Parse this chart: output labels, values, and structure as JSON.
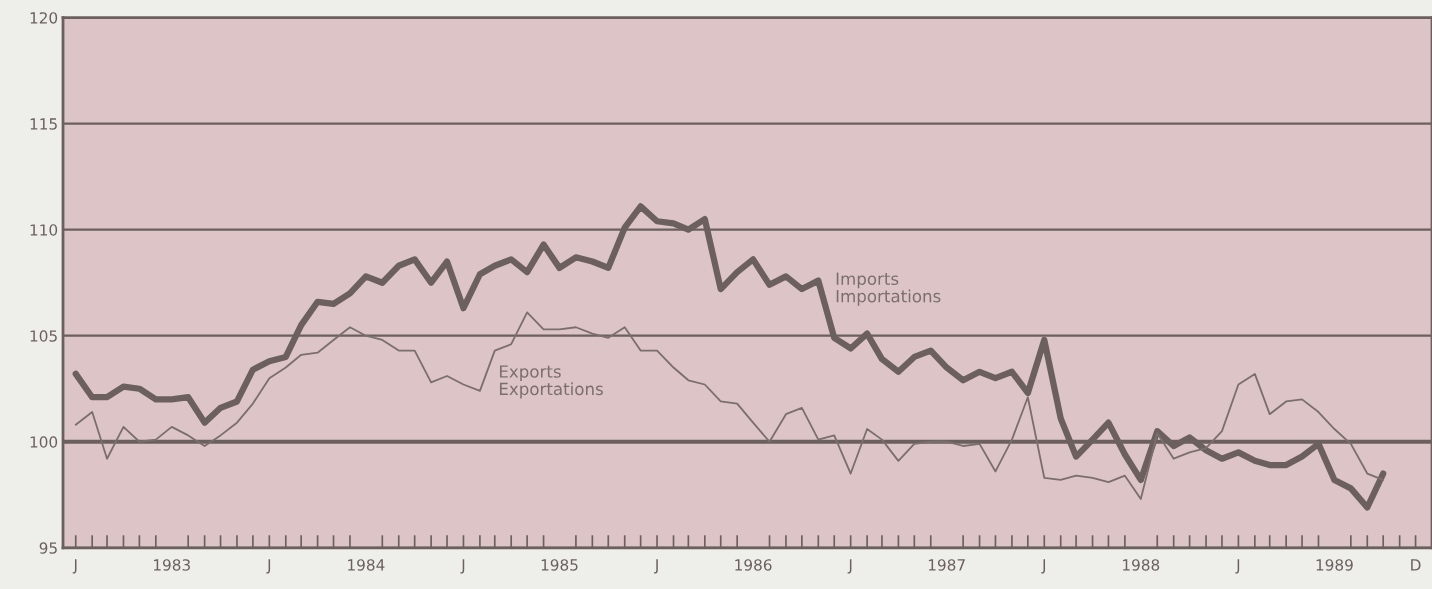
{
  "chart_data": {
    "type": "line",
    "x": [
      "1983-01",
      "1983-02",
      "1983-03",
      "1983-04",
      "1983-05",
      "1983-06",
      "1983-07",
      "1983-08",
      "1983-09",
      "1983-10",
      "1983-11",
      "1983-12",
      "1984-01",
      "1984-02",
      "1984-03",
      "1984-04",
      "1984-05",
      "1984-06",
      "1984-07",
      "1984-08",
      "1984-09",
      "1984-10",
      "1984-11",
      "1984-12",
      "1985-01",
      "1985-02",
      "1985-03",
      "1985-04",
      "1985-05",
      "1985-06",
      "1985-07",
      "1985-08",
      "1985-09",
      "1985-10",
      "1985-11",
      "1985-12",
      "1986-01",
      "1986-02",
      "1986-03",
      "1986-04",
      "1986-05",
      "1986-06",
      "1986-07",
      "1986-08",
      "1986-09",
      "1986-10",
      "1986-11",
      "1986-12",
      "1987-01",
      "1987-02",
      "1987-03",
      "1987-04",
      "1987-05",
      "1987-06",
      "1987-07",
      "1987-08",
      "1987-09",
      "1987-10",
      "1987-11",
      "1987-12",
      "1988-01",
      "1988-02",
      "1988-03",
      "1988-04",
      "1988-05",
      "1988-06",
      "1988-07",
      "1988-08",
      "1988-09",
      "1988-10",
      "1988-11",
      "1988-12",
      "1989-01",
      "1989-02",
      "1989-03",
      "1989-04",
      "1989-05",
      "1989-06",
      "1989-07",
      "1989-08",
      "1989-09",
      "1989-10"
    ],
    "series": [
      {
        "color": "#6b605e",
        "values": [
          103.2,
          102.1,
          102.1,
          102.6,
          102.5,
          102.0,
          102.0,
          102.1,
          100.9,
          101.6,
          101.9,
          103.4,
          103.8,
          104.0,
          105.5,
          106.6,
          106.5,
          107.0,
          107.8,
          107.5,
          108.3,
          108.6,
          107.5,
          108.5,
          106.3,
          107.9,
          108.3,
          108.6,
          108.0,
          109.3,
          108.2,
          108.7,
          108.5,
          108.2,
          110.1,
          111.1,
          110.4,
          110.3,
          110.0,
          110.5,
          107.2,
          108.0,
          108.6,
          107.4,
          107.8,
          107.2,
          107.6,
          104.9,
          104.4,
          105.1,
          103.9,
          103.3,
          104.0,
          104.3,
          103.5,
          102.9,
          103.3,
          103.0,
          103.3,
          102.3,
          104.8,
          101.1,
          99.3,
          100.1,
          100.9,
          99.4,
          98.2,
          100.5,
          99.8,
          100.2,
          99.6,
          99.2,
          99.5,
          99.1,
          98.9,
          98.9,
          99.3,
          99.9,
          98.2,
          97.8,
          96.9,
          98.5
        ]
      },
      {
        "color": "#7a6f6c",
        "values": [
          100.8,
          101.4,
          99.2,
          100.7,
          100.0,
          100.1,
          100.7,
          100.3,
          99.8,
          100.3,
          100.9,
          101.8,
          103.0,
          103.5,
          104.1,
          104.2,
          104.8,
          105.4,
          105.0,
          104.8,
          104.3,
          104.3,
          102.8,
          103.1,
          102.7,
          102.4,
          104.3,
          104.6,
          106.1,
          105.3,
          105.3,
          105.4,
          105.1,
          104.9,
          105.4,
          104.3,
          104.3,
          103.5,
          102.9,
          102.7,
          101.9,
          101.8,
          100.9,
          100.0,
          101.3,
          101.6,
          100.1,
          100.3,
          98.5,
          100.6,
          100.1,
          99.1,
          99.9,
          100.0,
          100.0,
          99.8,
          99.9,
          98.6,
          100.1,
          102.1,
          98.3,
          98.2,
          98.4,
          98.3,
          98.1,
          98.4,
          97.3,
          100.4,
          99.2,
          99.5,
          99.7,
          100.5,
          102.7,
          103.2,
          101.3,
          101.9,
          102.0,
          101.4,
          100.6,
          99.9,
          98.5,
          98.2
        ]
      }
    ],
    "annotations": [
      "Imports\nImportations",
      "Exports\nExportations"
    ],
    "xlim": [
      "1982-12-08",
      "1990-01-01"
    ],
    "xticks": [
      {
        "value": "1983-01",
        "label": "J"
      },
      {
        "value": "1983-02",
        "label": null
      },
      {
        "value": "1983-03",
        "label": null
      },
      {
        "value": "1983-04",
        "label": null
      },
      {
        "value": "1983-05",
        "label": null
      },
      {
        "value": "1983-06",
        "label": null
      },
      {
        "value": "1983-07",
        "label": "1983"
      },
      {
        "value": "1983-08",
        "label": null
      },
      {
        "value": "1983-09",
        "label": null
      },
      {
        "value": "1983-10",
        "label": null
      },
      {
        "value": "1983-11",
        "label": null
      },
      {
        "value": "1983-12",
        "label": null
      },
      {
        "value": "1984-01",
        "label": "J"
      },
      {
        "value": "1984-02",
        "label": null
      },
      {
        "value": "1984-03",
        "label": null
      },
      {
        "value": "1984-04",
        "label": null
      },
      {
        "value": "1984-05",
        "label": null
      },
      {
        "value": "1984-06",
        "label": null
      },
      {
        "value": "1984-07",
        "label": "1984"
      },
      {
        "value": "1984-08",
        "label": null
      },
      {
        "value": "1984-09",
        "label": null
      },
      {
        "value": "1984-10",
        "label": null
      },
      {
        "value": "1984-11",
        "label": null
      },
      {
        "value": "1984-12",
        "label": null
      },
      {
        "value": "1985-01",
        "label": "J"
      },
      {
        "value": "1985-02",
        "label": null
      },
      {
        "value": "1985-03",
        "label": null
      },
      {
        "value": "1985-04",
        "label": null
      },
      {
        "value": "1985-05",
        "label": null
      },
      {
        "value": "1985-06",
        "label": null
      },
      {
        "value": "1985-07",
        "label": "1985"
      },
      {
        "value": "1985-08",
        "label": null
      },
      {
        "value": "1985-09",
        "label": null
      },
      {
        "value": "1985-10",
        "label": null
      },
      {
        "value": "1985-11",
        "label": null
      },
      {
        "value": "1985-12",
        "label": null
      },
      {
        "value": "1986-01",
        "label": "J"
      },
      {
        "value": "1986-02",
        "label": null
      },
      {
        "value": "1986-03",
        "label": null
      },
      {
        "value": "1986-04",
        "label": null
      },
      {
        "value": "1986-05",
        "label": null
      },
      {
        "value": "1986-06",
        "label": null
      },
      {
        "value": "1986-07",
        "label": "1986"
      },
      {
        "value": "1986-08",
        "label": null
      },
      {
        "value": "1986-09",
        "label": null
      },
      {
        "value": "1986-10",
        "label": null
      },
      {
        "value": "1986-11",
        "label": null
      },
      {
        "value": "1986-12",
        "label": null
      },
      {
        "value": "1987-01",
        "label": "J"
      },
      {
        "value": "1987-02",
        "label": null
      },
      {
        "value": "1987-03",
        "label": null
      },
      {
        "value": "1987-04",
        "label": null
      },
      {
        "value": "1987-05",
        "label": null
      },
      {
        "value": "1987-06",
        "label": null
      },
      {
        "value": "1987-07",
        "label": "1987"
      },
      {
        "value": "1987-08",
        "label": null
      },
      {
        "value": "1987-09",
        "label": null
      },
      {
        "value": "1987-10",
        "label": null
      },
      {
        "value": "1987-11",
        "label": null
      },
      {
        "value": "1987-12",
        "label": null
      },
      {
        "value": "1988-01",
        "label": "J"
      },
      {
        "value": "1988-02",
        "label": null
      },
      {
        "value": "1988-03",
        "label": null
      },
      {
        "value": "1988-04",
        "label": null
      },
      {
        "value": "1988-05",
        "label": null
      },
      {
        "value": "1988-06",
        "label": null
      },
      {
        "value": "1988-07",
        "label": "1988"
      },
      {
        "value": "1988-08",
        "label": null
      },
      {
        "value": "1988-09",
        "label": null
      },
      {
        "value": "1988-10",
        "label": null
      },
      {
        "value": "1988-11",
        "label": null
      },
      {
        "value": "1988-12",
        "label": null
      },
      {
        "value": "1989-01",
        "label": "J"
      },
      {
        "value": "1989-02",
        "label": null
      },
      {
        "value": "1989-03",
        "label": null
      },
      {
        "value": "1989-04",
        "label": null
      },
      {
        "value": "1989-05",
        "label": null
      },
      {
        "value": "1989-06",
        "label": null
      },
      {
        "value": "1989-07",
        "label": "1989"
      },
      {
        "value": "1989-08",
        "label": null
      },
      {
        "value": "1989-09",
        "label": null
      },
      {
        "value": "1989-10",
        "label": null
      },
      {
        "value": "1989-11",
        "label": null
      },
      {
        "value": "1989-12",
        "label": "D"
      }
    ],
    "ylim": [
      95,
      120
    ],
    "yticks": [
      95,
      100,
      105,
      110,
      115,
      120
    ],
    "grid": "y",
    "ref_lines": [
      {
        "axis": "y",
        "value": 100
      }
    ]
  }
}
